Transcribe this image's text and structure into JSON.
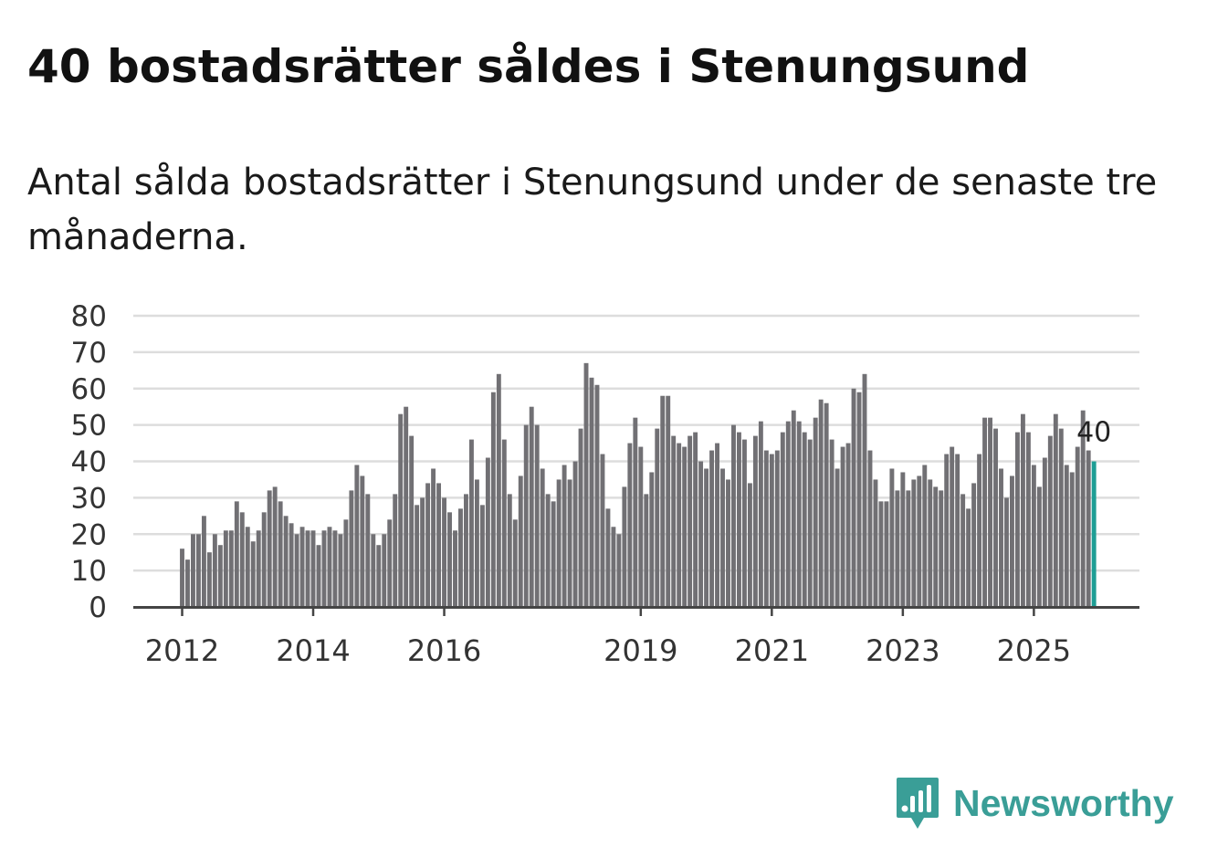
{
  "title": "40 bostadsrätter såldes i Stenungsund",
  "subtitle": "Antal sålda bostadsrätter i Stenungsund under de senaste tre månaderna.",
  "logo": {
    "text": "Newsworthy",
    "icon": "bar-chart-speech-bubble-icon"
  },
  "colors": {
    "bar": "#717074",
    "highlight": "#1e9e95",
    "grid": "#dddddd",
    "axis": "#444444",
    "brand": "#3a9e97"
  },
  "chart_data": {
    "type": "bar",
    "title": "40 bostadsrätter såldes i Stenungsund",
    "xlabel": "",
    "ylabel": "",
    "ylim": [
      0,
      80
    ],
    "yticks": [
      0,
      10,
      20,
      30,
      40,
      50,
      60,
      70,
      80
    ],
    "xticks": [
      "2012",
      "2014",
      "2016",
      "2019",
      "2021",
      "2023",
      "2025"
    ],
    "grid": true,
    "start_month": "2012-01",
    "frequency": "monthly (rolling three-month sum)",
    "highlight_label": "40",
    "values": [
      16,
      13,
      20,
      20,
      25,
      15,
      20,
      17,
      21,
      21,
      29,
      26,
      22,
      18,
      21,
      26,
      32,
      33,
      29,
      25,
      23,
      20,
      22,
      21,
      21,
      17,
      21,
      22,
      21,
      20,
      24,
      32,
      39,
      36,
      31,
      20,
      17,
      20,
      24,
      31,
      53,
      55,
      47,
      28,
      30,
      34,
      38,
      34,
      30,
      26,
      21,
      27,
      31,
      46,
      35,
      28,
      41,
      59,
      64,
      46,
      31,
      24,
      36,
      50,
      55,
      50,
      38,
      31,
      29,
      35,
      39,
      35,
      40,
      49,
      67,
      63,
      61,
      42,
      27,
      22,
      20,
      33,
      45,
      52,
      44,
      31,
      37,
      49,
      58,
      58,
      47,
      45,
      44,
      47,
      48,
      40,
      38,
      43,
      45,
      38,
      35,
      50,
      48,
      46,
      34,
      47,
      51,
      43,
      42,
      43,
      48,
      51,
      54,
      51,
      48,
      46,
      52,
      57,
      56,
      46,
      38,
      44,
      45,
      60,
      59,
      64,
      43,
      35,
      29,
      29,
      38,
      32,
      37,
      32,
      35,
      36,
      39,
      35,
      33,
      32,
      42,
      44,
      42,
      31,
      27,
      34,
      42,
      52,
      52,
      49,
      38,
      30,
      36,
      48,
      53,
      48,
      39,
      33,
      41,
      47,
      53,
      49,
      39,
      37,
      44,
      54,
      43,
      40
    ]
  }
}
